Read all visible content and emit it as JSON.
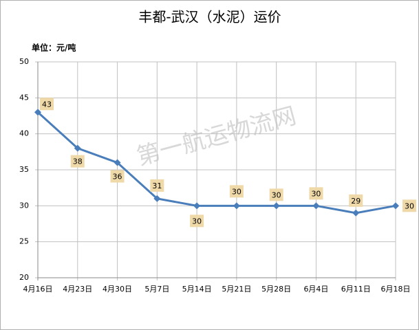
{
  "chart_data": {
    "type": "line",
    "title": "丰都-武汉（水泥）运价",
    "unit_label": "单位：元/吨",
    "watermark": "第一航运物流网",
    "categories": [
      "4月16日",
      "4月23日",
      "4月30日",
      "5月7日",
      "5月14日",
      "5月21日",
      "5月28日",
      "6月4日",
      "6月11日",
      "6月18日"
    ],
    "series": [
      {
        "name": "运价",
        "color": "#4a7ebb",
        "values": [
          43,
          38,
          36,
          31,
          30,
          30,
          30,
          30,
          29,
          30
        ]
      }
    ],
    "ylim": [
      20,
      50
    ],
    "yticks": [
      20,
      25,
      30,
      35,
      40,
      45,
      50
    ],
    "grid": true,
    "label_color": "#f0d9a8"
  }
}
